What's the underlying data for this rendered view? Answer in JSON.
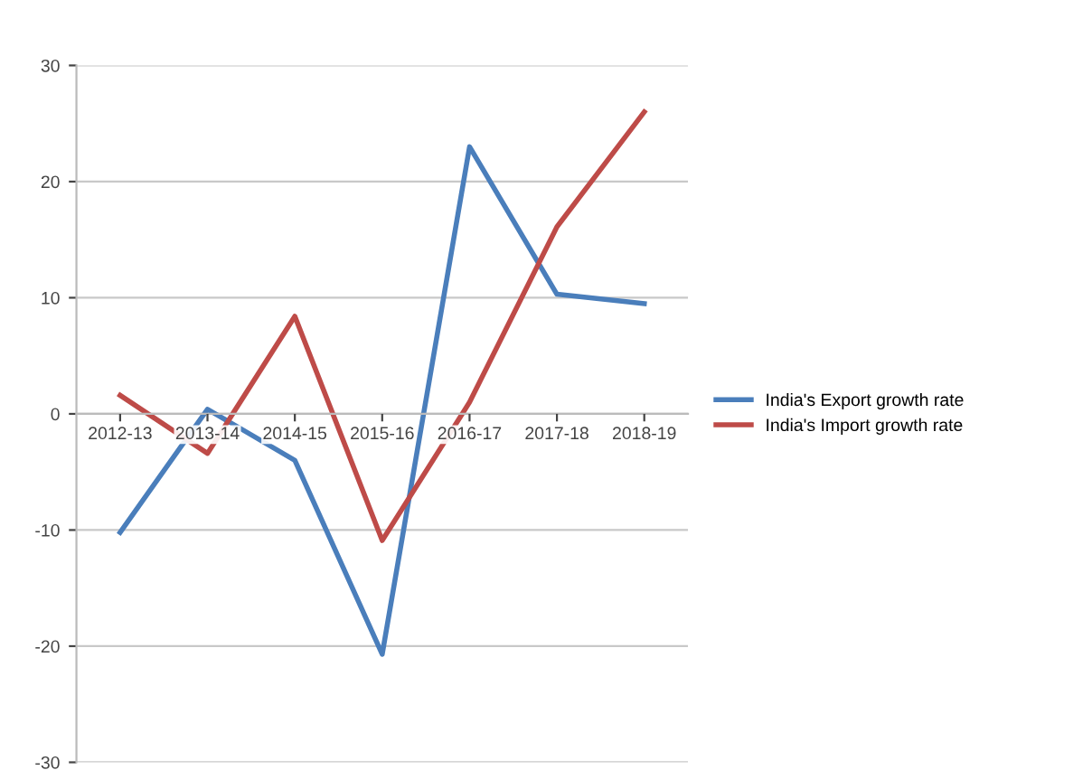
{
  "chart_data": {
    "type": "line",
    "categories": [
      "2012-13",
      "2013-14",
      "2014-15",
      "2015-16",
      "2016-17",
      "2017-18",
      "2018-19"
    ],
    "series": [
      {
        "name": "India's Export growth rate",
        "color": "#4a7ebb",
        "values": [
          -10.2,
          0.4,
          -4,
          -20.7,
          23,
          10.3,
          9.5
        ]
      },
      {
        "name": "India's Import growth rate",
        "color": "#be4b48",
        "values": [
          1.6,
          -3.4,
          8.4,
          -10.9,
          1,
          16.1,
          26
        ]
      }
    ],
    "ylim": [
      -30,
      30
    ],
    "yticks": [
      -30,
      -20,
      -10,
      0,
      10,
      20,
      30
    ],
    "grid": "y",
    "legend": "right",
    "marker": "none",
    "line_style": "solid"
  }
}
